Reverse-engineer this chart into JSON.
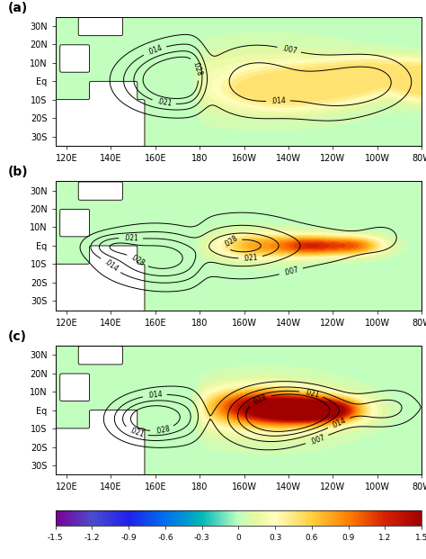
{
  "panels": [
    "(a)",
    "(b)",
    "(c)"
  ],
  "lon_range": [
    115,
    80
  ],
  "lon_ticks": [
    120,
    140,
    160,
    180,
    -160,
    -140,
    -120,
    -100,
    -80
  ],
  "lon_labels": [
    "120E",
    "140E",
    "160E",
    "180",
    "160W",
    "140W",
    "120W",
    "100W",
    "80W"
  ],
  "lat_range": [
    -35,
    35
  ],
  "lat_ticks": [
    -30,
    -20,
    -10,
    0,
    10,
    20,
    30
  ],
  "lat_labels": [
    "30S",
    "20S",
    "10S",
    "Eq",
    "10N",
    "20N",
    "30N"
  ],
  "colorbar_ticks": [
    -1.5,
    -1.2,
    -0.9,
    -0.6,
    -0.3,
    0,
    0.3,
    0.6,
    0.9,
    1.2,
    1.5
  ],
  "colorbar_colors": [
    "#7b0096",
    "#5b00d0",
    "#2b2bff",
    "#0080ff",
    "#00c8c8",
    "#c8ffc8",
    "#f0f0a0",
    "#ffd040",
    "#ff8000",
    "#e03000",
    "#b00000"
  ],
  "sst_vmin": -1.5,
  "sst_vmax": 1.5,
  "figsize": [
    4.74,
    6.21
  ],
  "dpi": 100,
  "background_color": "#f5f0c8"
}
